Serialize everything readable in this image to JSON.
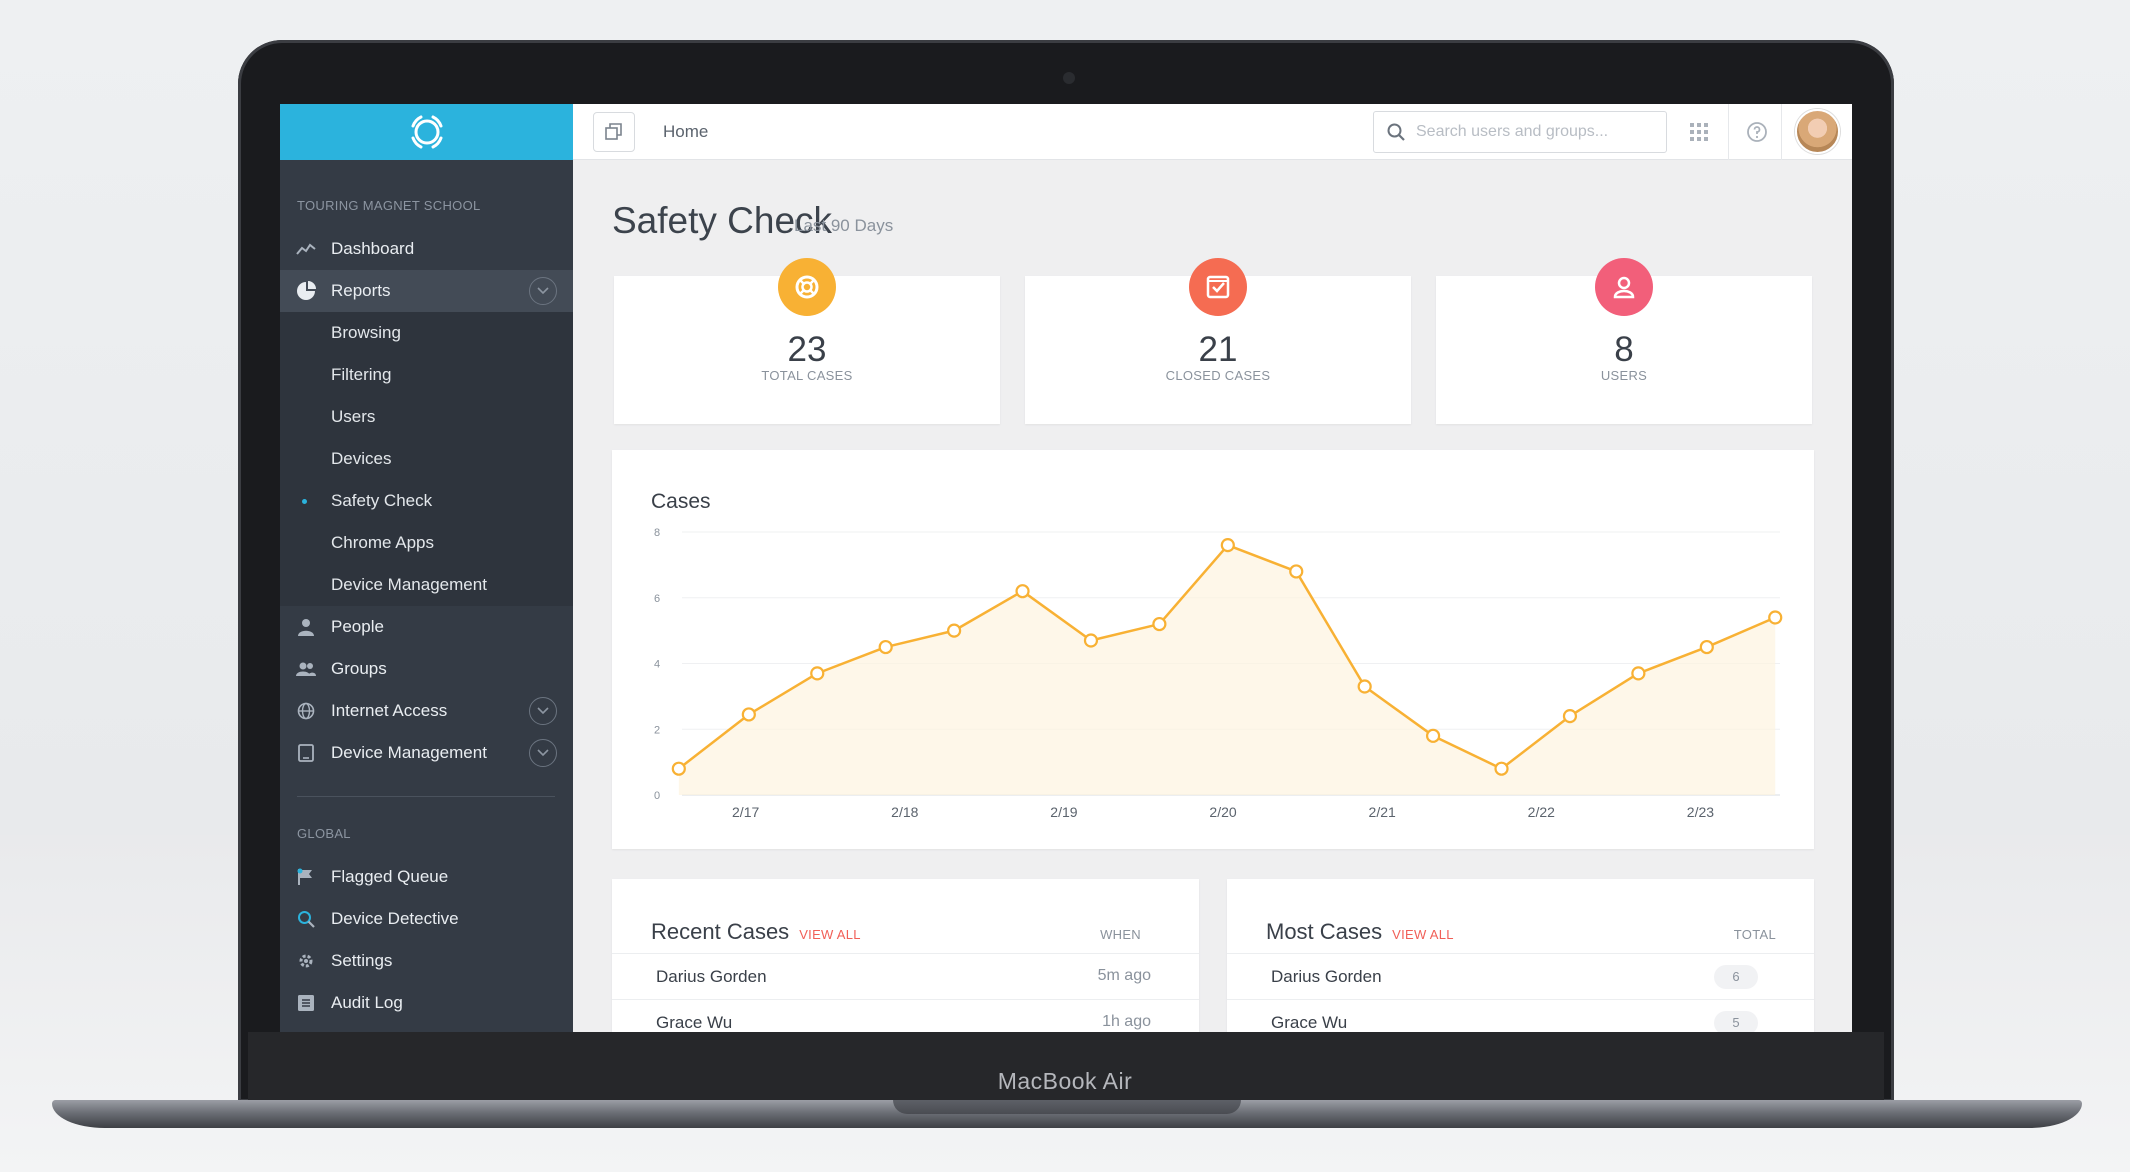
{
  "device": {
    "brand": "MacBook Air"
  },
  "sidebar": {
    "org_label": "TOURING MAGNET SCHOOL",
    "items": [
      {
        "label": "Dashboard",
        "icon": "chart-line-icon"
      },
      {
        "label": "Reports",
        "icon": "pie-chart-icon",
        "active": true,
        "expanded": true
      },
      {
        "label": "People",
        "icon": "person-icon"
      },
      {
        "label": "Groups",
        "icon": "group-icon"
      },
      {
        "label": "Internet Access",
        "icon": "globe-icon"
      },
      {
        "label": "Device Management",
        "icon": "tablet-icon"
      }
    ],
    "report_subitems": [
      {
        "label": "Browsing"
      },
      {
        "label": "Filtering"
      },
      {
        "label": "Users"
      },
      {
        "label": "Devices"
      },
      {
        "label": "Safety Check",
        "selected": true
      },
      {
        "label": "Chrome Apps"
      },
      {
        "label": "Device Management"
      }
    ],
    "global_label": "GLOBAL",
    "global_items": [
      {
        "label": "Flagged Queue",
        "icon": "flag-icon"
      },
      {
        "label": "Device Detective",
        "icon": "search-refresh-icon"
      },
      {
        "label": "Settings",
        "icon": "gear-icon"
      },
      {
        "label": "Audit Log",
        "icon": "list-icon"
      }
    ],
    "accent_color": "#2bb3dd"
  },
  "topbar": {
    "breadcrumb": "Home",
    "search_placeholder": "Search users and groups..."
  },
  "page": {
    "title": "Safety Check",
    "subtitle": "Last 90 Days"
  },
  "stats": [
    {
      "value": "23",
      "label": "TOTAL CASES",
      "color": "#f8b134",
      "icon": "lifebuoy-icon"
    },
    {
      "value": "21",
      "label": "CLOSED CASES",
      "color": "#f56c52",
      "icon": "checkbox-icon"
    },
    {
      "value": "8",
      "label": "USERS",
      "color": "#f25f7a",
      "icon": "user-icon"
    }
  ],
  "chart_data": {
    "type": "line",
    "title": "Cases",
    "x": [
      "2/17",
      "2/18",
      "2/19",
      "2/20",
      "2/21",
      "2/22",
      "2/23"
    ],
    "y_ticks": [
      0,
      2,
      4,
      6,
      8
    ],
    "ylim": [
      0,
      8
    ],
    "xlim": [
      16.6,
      23.5
    ],
    "series": [
      {
        "points": [
          [
            16.58,
            0.8
          ],
          [
            17.02,
            2.45
          ],
          [
            17.45,
            3.7
          ],
          [
            17.88,
            4.5
          ],
          [
            18.31,
            5.0
          ],
          [
            18.74,
            6.2
          ],
          [
            19.17,
            4.7
          ],
          [
            19.6,
            5.2
          ],
          [
            20.03,
            7.6
          ],
          [
            20.46,
            6.8
          ],
          [
            20.89,
            3.3
          ],
          [
            21.32,
            1.8
          ],
          [
            21.75,
            0.8
          ],
          [
            22.18,
            2.4
          ],
          [
            22.61,
            3.7
          ],
          [
            23.04,
            4.5
          ],
          [
            23.47,
            5.4
          ]
        ],
        "color": "#f8b134"
      }
    ],
    "grid": true
  },
  "recent_cases": {
    "title": "Recent Cases",
    "view_all": "VIEW ALL",
    "column": "WHEN",
    "rows": [
      {
        "name": "Darius Gorden",
        "when": "5m ago"
      },
      {
        "name": "Grace Wu",
        "when": "1h ago"
      }
    ]
  },
  "most_cases": {
    "title": "Most Cases",
    "view_all": "VIEW ALL",
    "column": "TOTAL",
    "rows": [
      {
        "name": "Darius Gorden",
        "total": "6"
      },
      {
        "name": "Grace Wu",
        "total": "5"
      }
    ]
  }
}
